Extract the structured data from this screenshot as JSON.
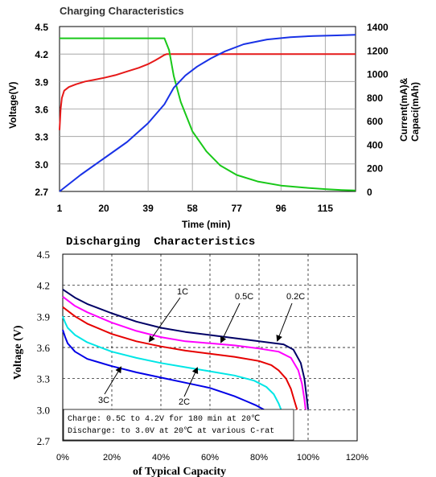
{
  "chart_data": [
    {
      "type": "line",
      "title": "Charging Characteristics",
      "xlabel": "Time (min)",
      "ylabel_left": "Voltage(V)",
      "ylabel_right_line1": "Current(mA)&",
      "ylabel_right_line2": "Capaci(mAh)",
      "xlim": [
        1,
        128
      ],
      "ylim_left": [
        2.7,
        4.5
      ],
      "ylim_right": [
        0,
        1400
      ],
      "x_ticks": [
        "1",
        "20",
        "39",
        "58",
        "77",
        "96",
        "115"
      ],
      "x_tick_values": [
        1,
        20,
        39,
        58,
        77,
        96,
        115
      ],
      "y_ticks_left": [
        "2.7",
        "3.0",
        "3.3",
        "3.6",
        "3.9",
        "4.2",
        "4.5"
      ],
      "y_tick_values_left": [
        2.7,
        3.0,
        3.3,
        3.6,
        3.9,
        4.2,
        4.5
      ],
      "y_ticks_right": [
        "0",
        "200",
        "400",
        "600",
        "800",
        "1000",
        "1200",
        "1400"
      ],
      "y_tick_values_right": [
        0,
        200,
        400,
        600,
        800,
        1000,
        1200,
        1400
      ],
      "grid": true,
      "series": [
        {
          "axis": "left",
          "color": "#e61919",
          "x": [
            1,
            1.5,
            2,
            3,
            5,
            8,
            12,
            16,
            20,
            25,
            30,
            35,
            39,
            42,
            44,
            46,
            47,
            48,
            128
          ],
          "y": [
            3.37,
            3.6,
            3.72,
            3.8,
            3.84,
            3.87,
            3.9,
            3.92,
            3.94,
            3.97,
            4.01,
            4.05,
            4.09,
            4.13,
            4.16,
            4.19,
            4.2,
            4.2,
            4.2
          ]
        },
        {
          "axis": "right",
          "color": "#19c819",
          "x": [
            1,
            46,
            48,
            50,
            53,
            58,
            64,
            70,
            77,
            86,
            96,
            106,
            115,
            122,
            128
          ],
          "y": [
            1300,
            1300,
            1200,
            980,
            760,
            510,
            340,
            220,
            140,
            85,
            50,
            32,
            20,
            12,
            8
          ]
        },
        {
          "axis": "right",
          "color": "#1932e6",
          "x": [
            1,
            10,
            20,
            30,
            39,
            46,
            50,
            55,
            60,
            66,
            72,
            80,
            90,
            100,
            110,
            120,
            128
          ],
          "y": [
            0,
            140,
            280,
            420,
            580,
            740,
            880,
            985,
            1060,
            1130,
            1190,
            1250,
            1290,
            1310,
            1320,
            1325,
            1330
          ]
        }
      ]
    },
    {
      "type": "line",
      "title": "Discharging  Characteristics",
      "xlabel": "of Typical Capacity",
      "ylabel": "Voltage (V)",
      "xlim": [
        0,
        120
      ],
      "ylim": [
        2.7,
        4.5
      ],
      "x_ticks": [
        "0%",
        "20%",
        "40%",
        "60%",
        "80%",
        "100%",
        "120%"
      ],
      "x_tick_values": [
        0,
        20,
        40,
        60,
        80,
        100,
        120
      ],
      "y_ticks": [
        "2.7",
        "3.0",
        "3.3",
        "3.6",
        "3.9",
        "4.2",
        "4.5"
      ],
      "y_tick_values": [
        2.7,
        3.0,
        3.3,
        3.6,
        3.9,
        4.2,
        4.5
      ],
      "grid": true,
      "notes": [
        "Charge: 0.5C to 4.2V for 180 min at 20℃",
        "Discharge: to 3.0V at 20℃ at various C-rat"
      ],
      "series": [
        {
          "name": "0.2C",
          "color": "#000066",
          "x": [
            0,
            5,
            10,
            20,
            30,
            40,
            50,
            60,
            70,
            80,
            90,
            94,
            97,
            98.5,
            99.5,
            100
          ],
          "y": [
            4.16,
            4.08,
            4.02,
            3.93,
            3.85,
            3.79,
            3.75,
            3.72,
            3.69,
            3.66,
            3.63,
            3.58,
            3.45,
            3.3,
            3.1,
            3.0
          ]
        },
        {
          "name": "0.5C",
          "color": "#ff00ff",
          "x": [
            0,
            5,
            10,
            20,
            30,
            40,
            50,
            60,
            70,
            80,
            88,
            93,
            96,
            97.5,
            98.5,
            99
          ],
          "y": [
            4.09,
            4.0,
            3.94,
            3.84,
            3.76,
            3.7,
            3.66,
            3.64,
            3.62,
            3.59,
            3.56,
            3.5,
            3.38,
            3.25,
            3.1,
            3.0
          ]
        },
        {
          "name": "1C",
          "color": "#e60000",
          "x": [
            0,
            5,
            10,
            20,
            30,
            40,
            50,
            60,
            70,
            80,
            85,
            88,
            91,
            93,
            94.5,
            95.5
          ],
          "y": [
            3.99,
            3.9,
            3.83,
            3.73,
            3.66,
            3.61,
            3.57,
            3.54,
            3.51,
            3.47,
            3.43,
            3.38,
            3.3,
            3.2,
            3.08,
            3.0
          ]
        },
        {
          "name": "2C",
          "color": "#00e6e6",
          "x": [
            0,
            1,
            2,
            5,
            10,
            20,
            30,
            40,
            50,
            60,
            70,
            78,
            83,
            86,
            88,
            89
          ],
          "y": [
            3.9,
            3.84,
            3.79,
            3.72,
            3.65,
            3.56,
            3.5,
            3.45,
            3.41,
            3.37,
            3.33,
            3.28,
            3.22,
            3.15,
            3.06,
            3.0
          ]
        },
        {
          "name": "3C",
          "color": "#0000e6",
          "x": [
            0,
            1,
            2,
            5,
            10,
            20,
            30,
            40,
            50,
            60,
            65,
            70,
            75,
            79,
            82
          ],
          "y": [
            3.77,
            3.7,
            3.64,
            3.56,
            3.49,
            3.42,
            3.36,
            3.31,
            3.26,
            3.21,
            3.17,
            3.13,
            3.08,
            3.04,
            3.0
          ]
        }
      ]
    }
  ]
}
